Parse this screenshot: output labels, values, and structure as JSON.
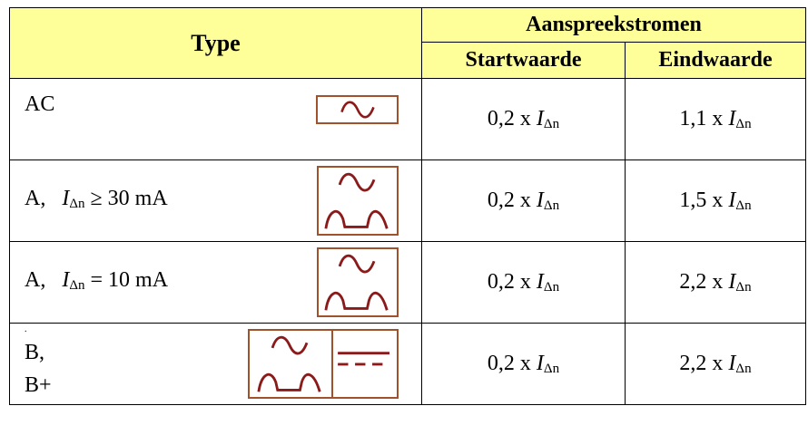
{
  "header": {
    "type_label": "Type",
    "group_label": "Aanspreekstromen",
    "start_label": "Startwaarde",
    "end_label": "Eindwaarde"
  },
  "symbol": {
    "main": "I",
    "subscript": "Δn"
  },
  "colors": {
    "header_bg": "#ffff99",
    "icon_stroke": "#8b1a1a",
    "icon_border": "#a0522d"
  },
  "rows": [
    {
      "type_text": "AC",
      "type_suffix": "",
      "icons": [
        "sine-wave-icon"
      ],
      "start_factor": "0,2 x ",
      "end_factor": "1,1 x "
    },
    {
      "type_text": "A,",
      "type_suffix": " ≥ 30 mA",
      "icons": [
        "sine-wave-icon",
        "half-wave-pulse-icon"
      ],
      "start_factor": "0,2 x ",
      "end_factor": "1,5 x "
    },
    {
      "type_text": "A,",
      "type_suffix": " = 10 mA",
      "icons": [
        "sine-wave-icon",
        "half-wave-pulse-icon"
      ],
      "start_factor": "0,2 x ",
      "end_factor": "2,2 x "
    },
    {
      "type_text": "B,",
      "type_text_2": "B+",
      "type_suffix": "",
      "icons": [
        "sine-wave-icon",
        "half-wave-pulse-icon",
        "dc-current-icon"
      ],
      "start_factor": "0,2 x ",
      "end_factor": "2,2 x "
    }
  ]
}
